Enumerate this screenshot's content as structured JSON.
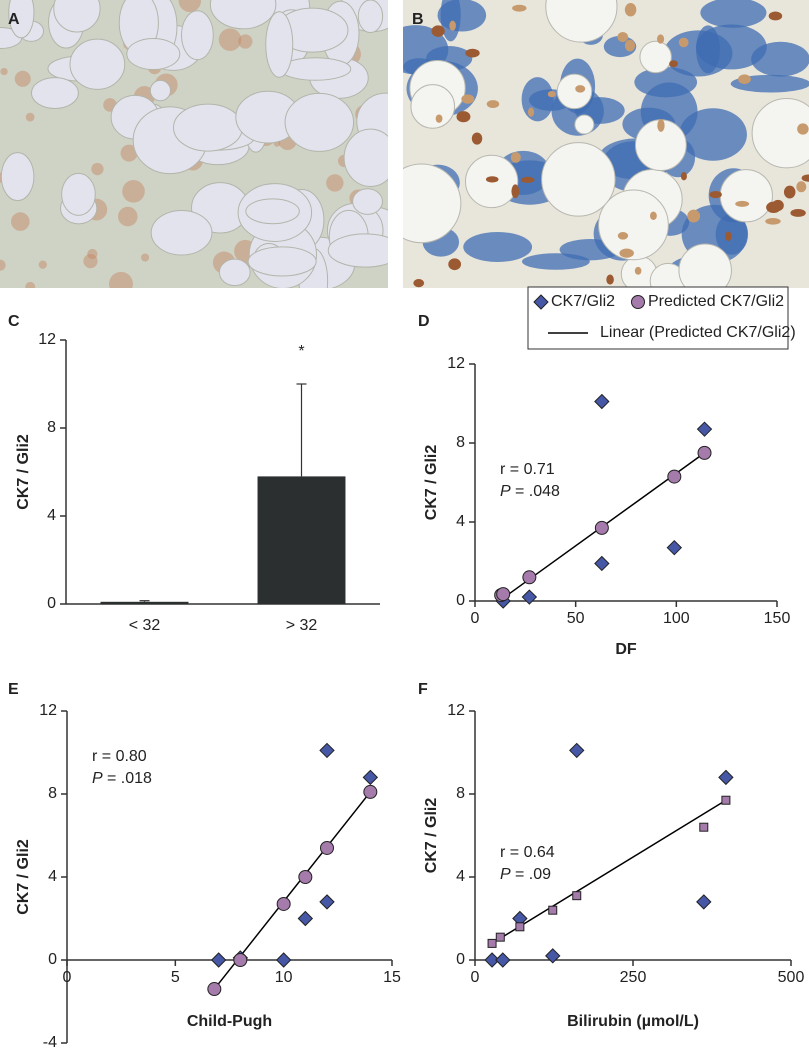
{
  "images": [
    {
      "label": "A"
    },
    {
      "label": "B"
    }
  ],
  "chart_data": [
    {
      "panel": "C",
      "type": "bar",
      "ylabel": "CK7 / Gli2",
      "categories": [
        "< 32",
        "> 32"
      ],
      "values": [
        0.1,
        5.8
      ],
      "errors": [
        0.05,
        4.2
      ],
      "color": "#2b2f2f",
      "ylim": [
        0,
        12
      ],
      "yticks": [
        0,
        4,
        8,
        12
      ],
      "significance": {
        "label": "*",
        "category": "> 32"
      }
    },
    {
      "panel": "D",
      "type": "scatter",
      "xlabel": "DF",
      "ylabel": "CK7 / Gli2",
      "xlim": [
        0,
        150
      ],
      "xticks": [
        0,
        50,
        100,
        150
      ],
      "ylim": [
        0,
        12
      ],
      "yticks": [
        0,
        4,
        8,
        12
      ],
      "legend": "top-right",
      "stats": {
        "r": "r = 0.71",
        "p_symbol": "P",
        "p_value": "= .048"
      },
      "series": [
        {
          "name": "CK7/Gli2",
          "marker": "diamond",
          "color": "#4657a6",
          "x": [
            14,
            27,
            63,
            63,
            99,
            114
          ],
          "values": [
            0,
            0.2,
            1.9,
            10.1,
            2.7,
            8.7
          ]
        },
        {
          "name": "Predicted CK7/Gli2",
          "marker": "circle",
          "color": "#a57bab",
          "x": [
            13,
            14,
            27,
            63,
            99,
            114
          ],
          "values": [
            0.3,
            0.35,
            1.2,
            3.7,
            6.3,
            7.5
          ]
        },
        {
          "name": "Linear (Predicted CK7/Gli2)",
          "marker": "line",
          "color": "#000000",
          "x": [
            12,
            114
          ],
          "values": [
            0,
            7.5
          ]
        }
      ]
    },
    {
      "panel": "E",
      "type": "scatter",
      "xlabel": "Child-Pugh",
      "ylabel": "CK7 / Gli2",
      "xlim": [
        0,
        15
      ],
      "xticks": [
        0,
        5,
        10,
        15
      ],
      "ylim": [
        -4,
        12
      ],
      "yticks": [
        -4,
        0,
        4,
        8,
        12
      ],
      "stats": {
        "r": "r = 0.80",
        "p_symbol": "P",
        "p_value": "= .018"
      },
      "series": [
        {
          "marker": "diamond",
          "color": "#4657a6",
          "x": [
            7,
            8,
            10,
            11,
            12,
            12,
            14
          ],
          "values": [
            0,
            0.1,
            0,
            2,
            2.8,
            10.1,
            8.8
          ]
        },
        {
          "marker": "circle",
          "color": "#a57bab",
          "x": [
            6.8,
            8,
            10,
            11,
            12,
            14
          ],
          "values": [
            -1.4,
            0,
            2.7,
            4,
            5.4,
            8.1
          ]
        },
        {
          "marker": "line",
          "color": "#000000",
          "x": [
            6.8,
            14
          ],
          "values": [
            -1.4,
            8.1
          ]
        }
      ]
    },
    {
      "panel": "F",
      "type": "scatter",
      "xlabel": "Bilirubin (µmol/L)",
      "ylabel": "CK7 / Gli2",
      "xlim": [
        0,
        500
      ],
      "xticks": [
        0,
        250,
        500
      ],
      "ylim": [
        0,
        12
      ],
      "yticks": [
        0,
        4,
        8,
        12
      ],
      "stats": {
        "r": "r = 0.64",
        "p_symbol": "P",
        "p_value": "= .09"
      },
      "series": [
        {
          "marker": "diamond",
          "color": "#4657a6",
          "x": [
            27,
            44,
            71,
            123,
            161,
            362,
            397
          ],
          "values": [
            0,
            0,
            2,
            0.2,
            10.1,
            2.8,
            8.8
          ]
        },
        {
          "marker": "square",
          "color": "#a57bab",
          "x": [
            27,
            40,
            71,
            123,
            161,
            362,
            397
          ],
          "values": [
            0.8,
            1.1,
            1.6,
            2.4,
            3.1,
            6.4,
            7.7
          ]
        },
        {
          "marker": "line",
          "color": "#000000",
          "x": [
            27,
            397
          ],
          "values": [
            0.8,
            7.7
          ]
        }
      ]
    }
  ]
}
